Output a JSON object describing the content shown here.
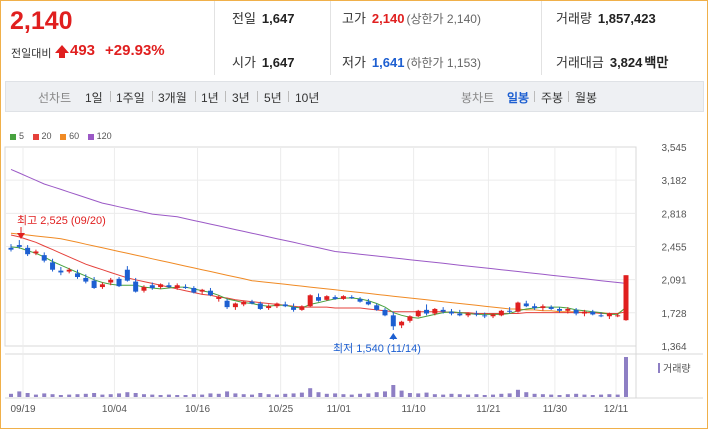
{
  "quote": {
    "price": "2,140",
    "change_label": "전일대비",
    "change_value": "493",
    "change_pct": "+29.93%",
    "prev_label": "전일",
    "prev_value": "1,647",
    "open_label": "시가",
    "open_value": "1,647",
    "high_label": "고가",
    "high_value": "2,140",
    "high_sub": "(상한가 2,140)",
    "low_label": "저가",
    "low_value": "1,641",
    "low_sub": "(하한가 1,153)",
    "volume_label": "거래량",
    "volume_value": "1,857,423",
    "amount_label": "거래대금",
    "amount_value": "3,824",
    "amount_unit": "백만"
  },
  "toolbar": {
    "line_label": "선차트",
    "line_periods": [
      "1일",
      "1주일",
      "3개월",
      "1년",
      "3년",
      "5년",
      "10년"
    ],
    "candle_label": "봉차트",
    "candle_periods": [
      "일봉",
      "주봉",
      "월봉"
    ],
    "active_candle": "일봉"
  },
  "colors": {
    "up": "#e01f1f",
    "down": "#1d5fd1",
    "ma5": "#47a23f",
    "ma20": "#e5413b",
    "ma60": "#f08a24",
    "ma120": "#9b59c6",
    "volume": "#8e7fc4"
  },
  "chart_data": {
    "type": "candlestick",
    "legend": [
      {
        "name": "5",
        "color": "#47a23f"
      },
      {
        "name": "20",
        "color": "#e5413b"
      },
      {
        "name": "60",
        "color": "#f08a24"
      },
      {
        "name": "120",
        "color": "#9b59c6"
      }
    ],
    "y_ticks": [
      "3,545",
      "3,182",
      "2,818",
      "2,455",
      "2,091",
      "1,728",
      "1,364"
    ],
    "ylim": [
      1364,
      3545
    ],
    "x_ticks": [
      "09/19",
      "10/04",
      "10/16",
      "10/25",
      "11/01",
      "11/10",
      "11/21",
      "11/30",
      "12/11"
    ],
    "annotations": {
      "high_text": "최고 2,525 (09/20)",
      "low_text": "최저 1,540 (11/14)"
    },
    "volume_label": "거래량",
    "candles": [
      [
        2440,
        2480,
        2400,
        2420
      ],
      [
        2470,
        2525,
        2430,
        2450
      ],
      [
        2440,
        2470,
        2350,
        2370
      ],
      [
        2380,
        2420,
        2360,
        2400
      ],
      [
        2360,
        2390,
        2280,
        2300
      ],
      [
        2280,
        2320,
        2180,
        2200
      ],
      [
        2190,
        2230,
        2140,
        2170
      ],
      [
        2180,
        2220,
        2160,
        2200
      ],
      [
        2160,
        2200,
        2100,
        2120
      ],
      [
        2110,
        2150,
        2050,
        2070
      ],
      [
        2080,
        2120,
        1990,
        2000
      ],
      [
        2010,
        2060,
        1990,
        2040
      ],
      [
        2060,
        2110,
        2030,
        2090
      ],
      [
        2100,
        2120,
        2010,
        2020
      ],
      [
        2200,
        2240,
        2070,
        2080
      ],
      [
        2070,
        2110,
        1950,
        1960
      ],
      [
        1970,
        2030,
        1950,
        2010
      ],
      [
        2030,
        2060,
        1980,
        2000
      ],
      [
        2010,
        2050,
        1990,
        2040
      ],
      [
        2030,
        2060,
        2000,
        2010
      ],
      [
        2000,
        2050,
        1980,
        2030
      ],
      [
        2010,
        2040,
        1990,
        2000
      ],
      [
        2000,
        2020,
        1940,
        1950
      ],
      [
        1960,
        1990,
        1930,
        1980
      ],
      [
        1970,
        2000,
        1910,
        1920
      ],
      [
        1880,
        1920,
        1850,
        1900
      ],
      [
        1860,
        1880,
        1770,
        1790
      ],
      [
        1790,
        1840,
        1760,
        1830
      ],
      [
        1820,
        1860,
        1800,
        1850
      ],
      [
        1850,
        1870,
        1820,
        1830
      ],
      [
        1830,
        1850,
        1760,
        1770
      ],
      [
        1780,
        1820,
        1760,
        1800
      ],
      [
        1800,
        1840,
        1780,
        1830
      ],
      [
        1820,
        1850,
        1790,
        1800
      ],
      [
        1790,
        1830,
        1740,
        1760
      ],
      [
        1760,
        1810,
        1750,
        1800
      ],
      [
        1800,
        1930,
        1790,
        1920
      ],
      [
        1900,
        1940,
        1850,
        1860
      ],
      [
        1870,
        1920,
        1860,
        1910
      ],
      [
        1900,
        1920,
        1870,
        1880
      ],
      [
        1880,
        1920,
        1870,
        1910
      ],
      [
        1900,
        1920,
        1880,
        1890
      ],
      [
        1880,
        1900,
        1840,
        1850
      ],
      [
        1850,
        1880,
        1810,
        1820
      ],
      [
        1810,
        1830,
        1750,
        1760
      ],
      [
        1760,
        1780,
        1690,
        1700
      ],
      [
        1700,
        1740,
        1540,
        1580
      ],
      [
        1590,
        1640,
        1560,
        1630
      ],
      [
        1640,
        1700,
        1620,
        1690
      ],
      [
        1690,
        1760,
        1680,
        1750
      ],
      [
        1760,
        1820,
        1700,
        1720
      ],
      [
        1720,
        1780,
        1700,
        1770
      ],
      [
        1760,
        1790,
        1720,
        1740
      ],
      [
        1740,
        1770,
        1700,
        1720
      ],
      [
        1720,
        1760,
        1690,
        1700
      ],
      [
        1700,
        1730,
        1680,
        1720
      ],
      [
        1720,
        1750,
        1690,
        1710
      ],
      [
        1700,
        1730,
        1670,
        1690
      ],
      [
        1690,
        1720,
        1670,
        1710
      ],
      [
        1700,
        1760,
        1690,
        1750
      ],
      [
        1750,
        1790,
        1720,
        1740
      ],
      [
        1740,
        1850,
        1730,
        1840
      ],
      [
        1830,
        1860,
        1790,
        1800
      ],
      [
        1800,
        1830,
        1760,
        1780
      ],
      [
        1780,
        1820,
        1750,
        1800
      ],
      [
        1790,
        1810,
        1760,
        1770
      ],
      [
        1770,
        1790,
        1730,
        1750
      ],
      [
        1750,
        1790,
        1720,
        1770
      ],
      [
        1760,
        1780,
        1700,
        1720
      ],
      [
        1720,
        1760,
        1690,
        1740
      ],
      [
        1740,
        1760,
        1700,
        1710
      ],
      [
        1700,
        1730,
        1680,
        1690
      ],
      [
        1690,
        1730,
        1660,
        1720
      ],
      [
        1700,
        1720,
        1680,
        1700
      ],
      [
        1647,
        2140,
        1641,
        2140
      ]
    ],
    "ma120": [
      3300,
      3260,
      3220,
      3180,
      3140,
      3110,
      3080,
      3050,
      3020,
      2990,
      2960,
      2930,
      2910,
      2890,
      2870,
      2850,
      2830,
      2810,
      2800,
      2790,
      2780,
      2760,
      2740,
      2720,
      2700,
      2680,
      2660,
      2640,
      2620,
      2600,
      2580,
      2560,
      2540,
      2520,
      2500,
      2480,
      2460,
      2440,
      2420,
      2400,
      2390,
      2380,
      2370,
      2360,
      2350,
      2340,
      2330,
      2320,
      2310,
      2300,
      2290,
      2280,
      2270,
      2260,
      2250,
      2240,
      2230,
      2220,
      2210,
      2200,
      2190,
      2180,
      2170,
      2160,
      2150,
      2140,
      2130,
      2120,
      2110,
      2100,
      2090,
      2080,
      2070,
      2060,
      2050
    ],
    "ma60": [
      2600,
      2590,
      2580,
      2570,
      2560,
      2550,
      2540,
      2520,
      2500,
      2480,
      2460,
      2440,
      2420,
      2400,
      2380,
      2360,
      2340,
      2320,
      2300,
      2280,
      2260,
      2240,
      2220,
      2200,
      2180,
      2160,
      2140,
      2120,
      2100,
      2080,
      2070,
      2060,
      2050,
      2040,
      2030,
      2020,
      2010,
      2000,
      1990,
      1980,
      1970,
      1960,
      1950,
      1940,
      1930,
      1920,
      1910,
      1900,
      1890,
      1880,
      1870,
      1860,
      1850,
      1840,
      1830,
      1820,
      1810,
      1800,
      1790,
      1780,
      1770,
      1770,
      1760,
      1760,
      1750,
      1750,
      1740,
      1740,
      1740,
      1730,
      1730,
      1730,
      1720,
      1720,
      1780
    ],
    "ma20": [
      2580,
      2560,
      2530,
      2500,
      2460,
      2420,
      2380,
      2340,
      2300,
      2260,
      2230,
      2200,
      2170,
      2140,
      2110,
      2090,
      2070,
      2050,
      2030,
      2010,
      1990,
      1970,
      1950,
      1930,
      1920,
      1900,
      1890,
      1870,
      1860,
      1850,
      1840,
      1830,
      1820,
      1810,
      1800,
      1790,
      1790,
      1790,
      1790,
      1780,
      1780,
      1780,
      1780,
      1770,
      1760,
      1750,
      1740,
      1740,
      1740,
      1740,
      1740,
      1740,
      1740,
      1730,
      1730,
      1730,
      1720,
      1720,
      1720,
      1720,
      1720,
      1720,
      1730,
      1730,
      1730,
      1730,
      1730,
      1730,
      1730,
      1730,
      1730,
      1720,
      1720,
      1720,
      1740
    ],
    "ma5": [
      2450,
      2440,
      2410,
      2380,
      2340,
      2290,
      2250,
      2210,
      2170,
      2130,
      2090,
      2060,
      2040,
      2030,
      2030,
      2030,
      2010,
      2000,
      1990,
      2000,
      2010,
      2010,
      1990,
      1970,
      1950,
      1920,
      1880,
      1860,
      1840,
      1830,
      1810,
      1800,
      1810,
      1810,
      1790,
      1780,
      1820,
      1840,
      1860,
      1880,
      1890,
      1890,
      1880,
      1860,
      1830,
      1790,
      1730,
      1700,
      1680,
      1670,
      1690,
      1710,
      1730,
      1740,
      1730,
      1720,
      1710,
      1710,
      1710,
      1710,
      1720,
      1750,
      1770,
      1780,
      1790,
      1790,
      1790,
      1780,
      1760,
      1750,
      1740,
      1730,
      1710,
      1710,
      1790
    ],
    "volume": [
      8,
      14,
      10,
      6,
      9,
      7,
      5,
      6,
      7,
      8,
      10,
      6,
      7,
      9,
      12,
      10,
      7,
      6,
      5,
      6,
      5,
      5,
      7,
      6,
      9,
      8,
      14,
      9,
      7,
      6,
      10,
      7,
      6,
      8,
      9,
      11,
      22,
      12,
      8,
      9,
      7,
      6,
      8,
      9,
      12,
      14,
      30,
      16,
      10,
      9,
      11,
      7,
      6,
      8,
      7,
      6,
      7,
      5,
      6,
      8,
      9,
      18,
      12,
      8,
      7,
      6,
      5,
      7,
      8,
      6,
      5,
      6,
      7,
      6,
      100
    ]
  }
}
